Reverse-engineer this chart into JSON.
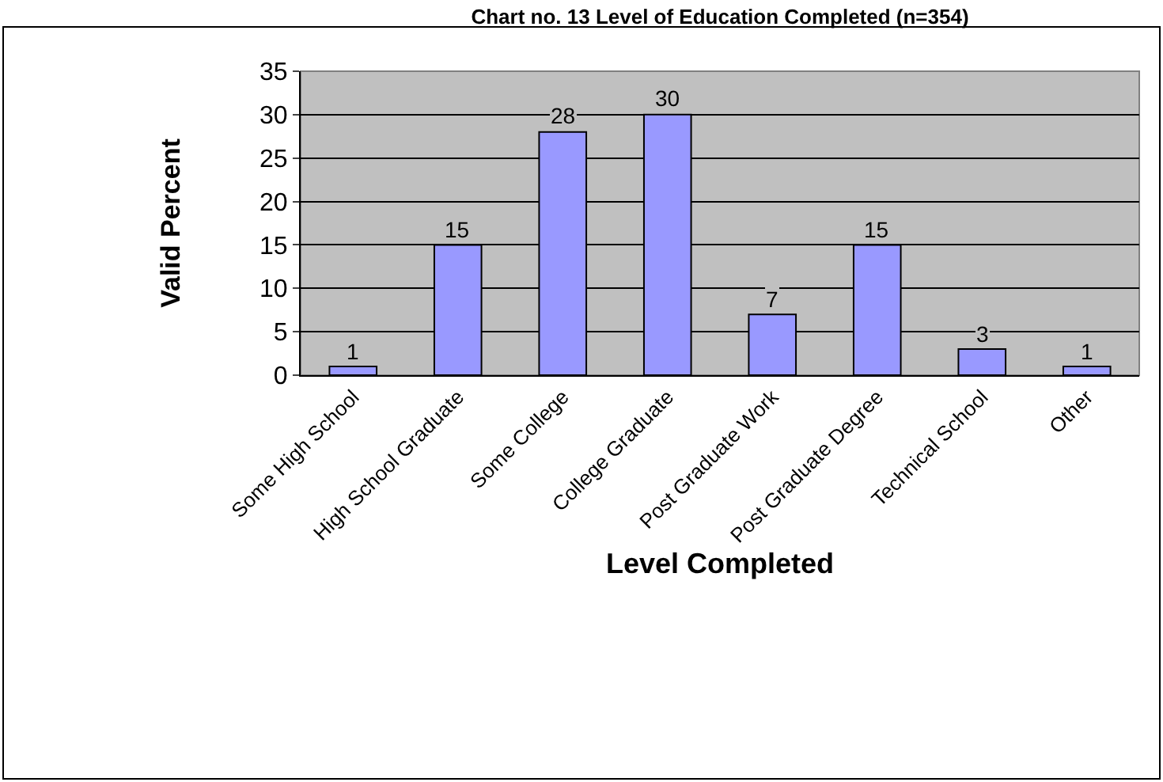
{
  "chart_data": {
    "type": "bar",
    "title": "Chart no. 13 Level of Education Completed (n=354)",
    "xlabel": "Level Completed",
    "ylabel": "Valid Percent",
    "categories": [
      "Some High School",
      "High School Graduate",
      "Some College",
      "College Graduate",
      "Post Graduate Work",
      "Post Graduate Degree",
      "Technical School",
      "Other"
    ],
    "values": [
      1,
      15,
      28,
      30,
      7,
      15,
      3,
      1
    ],
    "color": "#9999ff",
    "ylim": [
      0,
      35
    ],
    "yticks": [
      0,
      5,
      10,
      15,
      20,
      25,
      30,
      35
    ],
    "grid": "y",
    "data_labels": true
  }
}
